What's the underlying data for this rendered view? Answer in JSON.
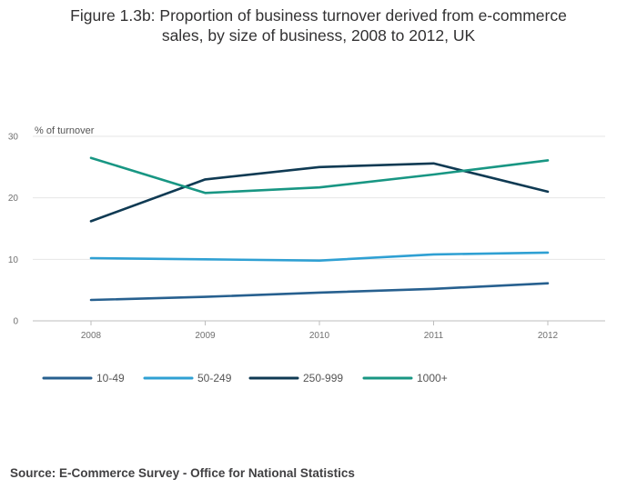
{
  "title_line1": "Figure 1.3b: Proportion of business turnover derived from e-commerce",
  "title_line2": "sales, by size of business, 2008 to 2012, UK",
  "source": "Source: E-Commerce Survey - Office for National Statistics",
  "chart_data": {
    "type": "line",
    "title": "Figure 1.3b: Proportion of business turnover derived from e-commerce sales, by size of business, 2008 to 2012, UK",
    "xlabel": "",
    "ylabel": "% of turnover",
    "x": [
      "2008",
      "2009",
      "2010",
      "2011",
      "2012"
    ],
    "ylim": [
      0,
      30
    ],
    "yticks": [
      0,
      10,
      20,
      30
    ],
    "grid": true,
    "legend_position": "bottom-left",
    "series": [
      {
        "name": "10-49",
        "color": "#27608f",
        "values": [
          3.4,
          3.9,
          4.6,
          5.2,
          6.1
        ]
      },
      {
        "name": "50-249",
        "color": "#2fa0d3",
        "values": [
          10.2,
          10.0,
          9.8,
          10.8,
          11.1
        ]
      },
      {
        "name": "250-999",
        "color": "#0f3a53",
        "values": [
          16.2,
          23.0,
          25.0,
          25.6,
          21.0
        ]
      },
      {
        "name": "1000+",
        "color": "#189683",
        "values": [
          26.5,
          20.8,
          21.7,
          23.8,
          26.1
        ]
      }
    ]
  }
}
